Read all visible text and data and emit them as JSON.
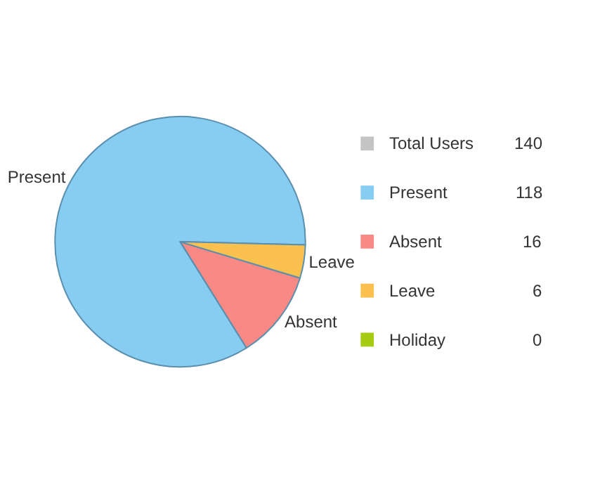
{
  "chart_data": {
    "type": "pie",
    "categories": [
      "Present",
      "Absent",
      "Leave",
      "Holiday"
    ],
    "values": [
      118,
      16,
      6,
      0
    ],
    "colors": [
      "#87cdf2",
      "#f98985",
      "#fbc14e",
      "#a5cc13"
    ],
    "data_labels": true,
    "value_labels": [
      "118",
      "16",
      "6",
      "0"
    ],
    "legend": "right",
    "annotations": [
      "Total Users",
      "140"
    ]
  }
}
